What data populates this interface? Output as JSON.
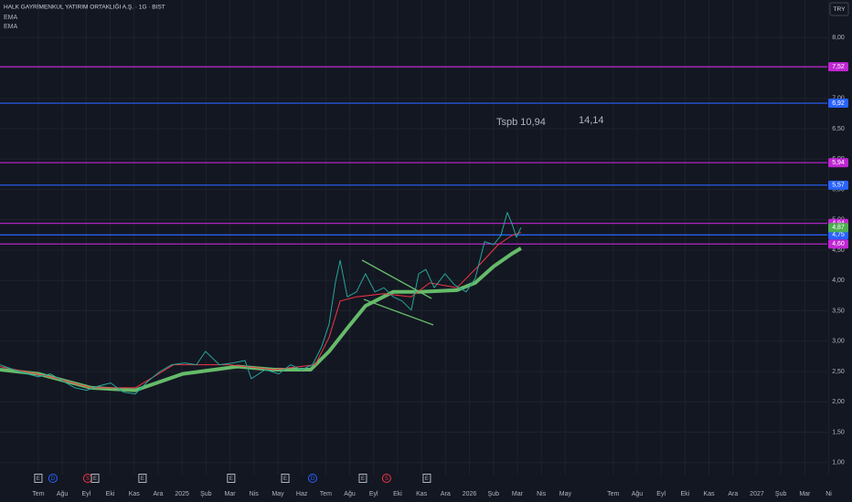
{
  "chart_data": {
    "type": "line",
    "title": "HALK GAYRİMENKUL YATIRIM ORTAKLIĞI A.Ş. · 1G · BIST",
    "currency": "TRY",
    "xlim": [
      -1.6,
      32.94
    ],
    "ylim": [
      0.8,
      8.62
    ],
    "grid": true,
    "yticks": [
      {
        "value": 1,
        "label": "1,00"
      },
      {
        "value": 1.5,
        "label": "1,50"
      },
      {
        "value": 2,
        "label": "2,00"
      },
      {
        "value": 2.5,
        "label": "2,50"
      },
      {
        "value": 3,
        "label": "3,00"
      },
      {
        "value": 3.5,
        "label": "3,50"
      },
      {
        "value": 4,
        "label": "4,00"
      },
      {
        "value": 4.5,
        "label": "4,50"
      },
      {
        "value": 5,
        "label": "5,00"
      },
      {
        "value": 5.5,
        "label": "5,50"
      },
      {
        "value": 6,
        "label": "6,00"
      },
      {
        "value": 6.5,
        "label": "6,50"
      },
      {
        "value": 7,
        "label": "7,00"
      },
      {
        "value": 7.5,
        "label": "7,50"
      },
      {
        "value": 8,
        "label": "8,00"
      }
    ],
    "xticks": [
      {
        "value": 0,
        "label": "Tem"
      },
      {
        "value": 1,
        "label": "Ağu"
      },
      {
        "value": 2,
        "label": "Eyl"
      },
      {
        "value": 3,
        "label": "Eki"
      },
      {
        "value": 4,
        "label": "Kas"
      },
      {
        "value": 5,
        "label": "Ara"
      },
      {
        "value": 6,
        "label": "2025"
      },
      {
        "value": 7,
        "label": "Şub"
      },
      {
        "value": 8,
        "label": "Mar"
      },
      {
        "value": 9,
        "label": "Nis"
      },
      {
        "value": 10,
        "label": "May"
      },
      {
        "value": 11,
        "label": "Haz"
      },
      {
        "value": 12,
        "label": "Tem"
      },
      {
        "value": 13,
        "label": "Ağu"
      },
      {
        "value": 14,
        "label": "Eyl"
      },
      {
        "value": 15,
        "label": "Eki"
      },
      {
        "value": 16,
        "label": "Kas"
      },
      {
        "value": 17,
        "label": "Ara"
      },
      {
        "value": 18,
        "label": "2026"
      },
      {
        "value": 19,
        "label": "Şub"
      },
      {
        "value": 20,
        "label": "Mar"
      },
      {
        "value": 21,
        "label": "Nis"
      },
      {
        "value": 22,
        "label": "May"
      },
      {
        "value": 24,
        "label": "Tem"
      },
      {
        "value": 25,
        "label": "Ağu"
      },
      {
        "value": 26,
        "label": "Eyl"
      },
      {
        "value": 27,
        "label": "Eki"
      },
      {
        "value": 28,
        "label": "Kas"
      },
      {
        "value": 29,
        "label": "Ara"
      },
      {
        "value": 30,
        "label": "2027"
      },
      {
        "value": 31,
        "label": "Şub"
      },
      {
        "value": 32,
        "label": "Mar"
      },
      {
        "value": 33,
        "label": "Ni"
      }
    ],
    "price": {
      "color": "#26a69a",
      "x": [
        -1.6,
        -1.03,
        -0.46,
        0,
        0.5,
        1.03,
        1.53,
        2.02,
        2.52,
        3.02,
        3.55,
        4.05,
        4.58,
        5.08,
        5.57,
        6.11,
        6.6,
        6.98,
        7.56,
        8.13,
        8.63,
        8.89,
        9.47,
        10.04,
        10.53,
        10.99,
        11.45,
        11.83,
        12.14,
        12.4,
        12.6,
        12.9,
        13.28,
        13.66,
        14.05,
        14.43,
        14.81,
        15.19,
        15.57,
        15.88,
        16.18,
        16.53,
        16.98,
        17.37,
        17.86,
        18.24,
        18.63,
        19.01,
        19.31,
        19.58,
        19.77,
        19.96,
        20.15
      ],
      "values": [
        2.61,
        2.53,
        2.46,
        2.41,
        2.46,
        2.34,
        2.23,
        2.19,
        2.26,
        2.31,
        2.16,
        2.13,
        2.34,
        2.5,
        2.61,
        2.64,
        2.61,
        2.83,
        2.61,
        2.64,
        2.68,
        2.38,
        2.53,
        2.46,
        2.61,
        2.53,
        2.61,
        2.91,
        3.28,
        3.96,
        4.33,
        3.73,
        3.81,
        4.11,
        3.81,
        3.88,
        3.73,
        3.66,
        3.51,
        4.11,
        4.18,
        3.88,
        4.11,
        3.93,
        3.81,
        4.03,
        4.64,
        4.59,
        4.74,
        5.12,
        4.94,
        4.71,
        4.87
      ]
    },
    "series": [
      {
        "name": "EMA",
        "color": "#f23645",
        "width": 1,
        "x": [
          -1.6,
          0.31,
          2.21,
          4.05,
          5.65,
          7.94,
          9.85,
          11.56,
          12.14,
          12.6,
          13.28,
          14.43,
          15.57,
          16.34,
          17.48,
          18.43,
          19.2,
          19.77,
          20.15
        ],
        "values": [
          2.58,
          2.43,
          2.23,
          2.23,
          2.61,
          2.61,
          2.53,
          2.61,
          3.06,
          3.66,
          3.73,
          3.78,
          3.73,
          3.96,
          3.88,
          4.26,
          4.59,
          4.74,
          4.79
        ]
      },
      {
        "name": "EMA",
        "color": "#66bb6a",
        "width": 4,
        "x": [
          -1.6,
          0,
          2.21,
          4.05,
          6.03,
          8.32,
          9.85,
          11.37,
          12.14,
          12.9,
          13.66,
          14.81,
          15.95,
          17.48,
          18.24,
          19.01,
          19.77,
          20.15
        ],
        "values": [
          2.53,
          2.46,
          2.23,
          2.19,
          2.46,
          2.58,
          2.53,
          2.53,
          2.83,
          3.21,
          3.58,
          3.81,
          3.81,
          3.84,
          3.96,
          4.23,
          4.44,
          4.53
        ]
      }
    ],
    "levels": [
      {
        "value": 7.52,
        "label": "7,52",
        "color": "#c026d3"
      },
      {
        "value": 6.92,
        "label": "6,92",
        "color": "#2962ff"
      },
      {
        "value": 5.94,
        "label": "5,94",
        "color": "#c026d3"
      },
      {
        "value": 5.57,
        "label": "5,57",
        "color": "#2962ff"
      },
      {
        "value": 4.94,
        "label": "4,94",
        "color": "#c026d3"
      },
      {
        "value": 4.75,
        "label": "4,75",
        "color": "#2962ff"
      },
      {
        "value": 4.6,
        "label": "4,60",
        "color": "#c026d3"
      }
    ],
    "last_price": {
      "value": 4.87,
      "label": "4,87",
      "color": "#4caf50"
    },
    "annotations": [
      {
        "text": "Tspb 10,94",
        "color": "#26a69a"
      },
      {
        "text": "14,14",
        "color": "#c026d3"
      }
    ],
    "events": [
      {
        "label": "E",
        "x": 0,
        "color": "#b2b5be"
      },
      {
        "label": "D",
        "x": 0.61,
        "color": "#2962ff"
      },
      {
        "label": "S",
        "x": 2.06,
        "color": "#f23645"
      },
      {
        "label": "E",
        "x": 2.37,
        "color": "#b2b5be"
      },
      {
        "label": "E",
        "x": 4.35,
        "color": "#b2b5be"
      },
      {
        "label": "E",
        "x": 8.05,
        "color": "#b2b5be"
      },
      {
        "label": "E",
        "x": 10.31,
        "color": "#b2b5be"
      },
      {
        "label": "D",
        "x": 11.45,
        "color": "#2962ff"
      },
      {
        "label": "E",
        "x": 13.55,
        "color": "#b2b5be"
      },
      {
        "label": "S",
        "x": 14.54,
        "color": "#f23645"
      },
      {
        "label": "E",
        "x": 16.22,
        "color": "#b2b5be"
      }
    ]
  }
}
